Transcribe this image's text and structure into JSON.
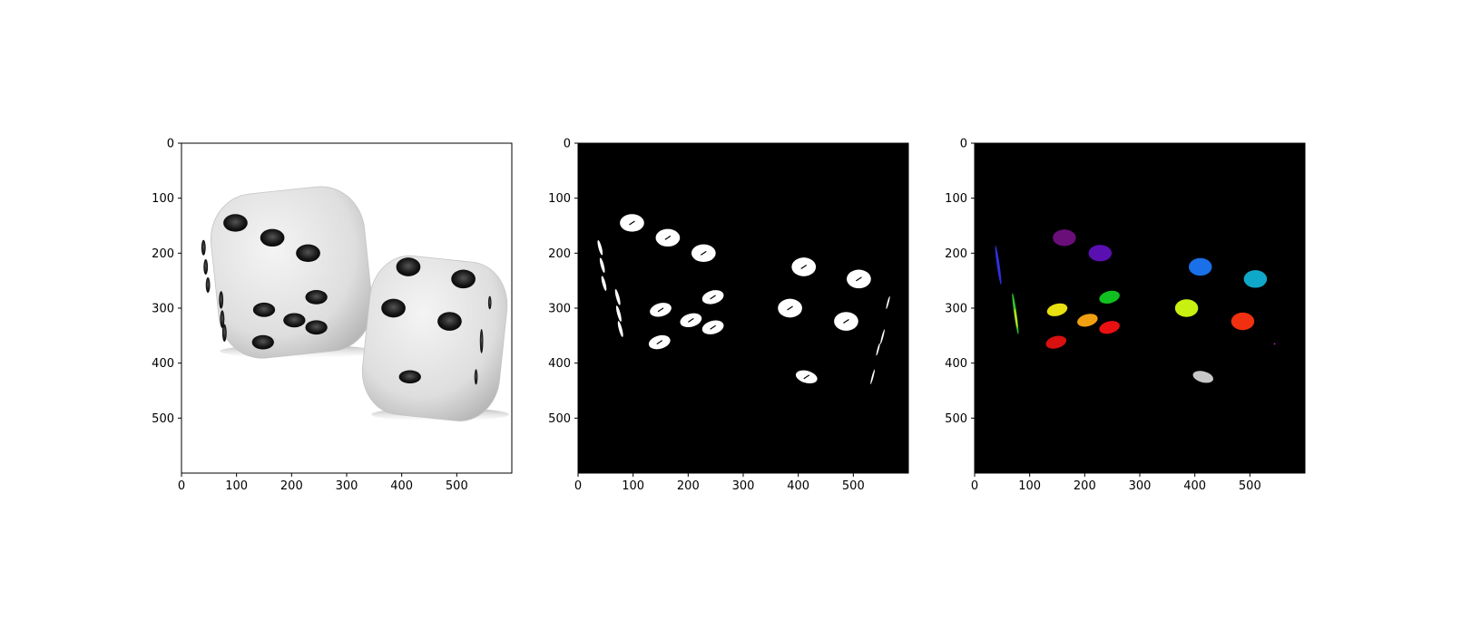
{
  "chart_data": [
    {
      "type": "image",
      "name": "grayscale dice photo",
      "background": "#ffffff",
      "xlim": [
        0,
        600
      ],
      "ylim": [
        600,
        0
      ],
      "xticks": [
        0,
        100,
        200,
        300,
        400,
        500
      ],
      "yticks": [
        0,
        100,
        200,
        300,
        400,
        500
      ],
      "dice": [
        {
          "cx": 200,
          "cy": 235,
          "w": 280,
          "h": 300,
          "rot": -6
        },
        {
          "cx": 460,
          "cy": 355,
          "w": 250,
          "h": 290,
          "rot": 6
        }
      ],
      "pips": [
        {
          "x": 98,
          "y": 145,
          "rx": 22,
          "ry": 16
        },
        {
          "x": 165,
          "y": 172,
          "rx": 22,
          "ry": 16
        },
        {
          "x": 230,
          "y": 200,
          "rx": 22,
          "ry": 16
        },
        {
          "x": 150,
          "y": 303,
          "rx": 20,
          "ry": 13
        },
        {
          "x": 205,
          "y": 322,
          "rx": 20,
          "ry": 13
        },
        {
          "x": 245,
          "y": 280,
          "rx": 20,
          "ry": 13
        },
        {
          "x": 245,
          "y": 335,
          "rx": 20,
          "ry": 13
        },
        {
          "x": 148,
          "y": 362,
          "rx": 20,
          "ry": 13
        },
        {
          "x": 412,
          "y": 225,
          "rx": 22,
          "ry": 17
        },
        {
          "x": 512,
          "y": 247,
          "rx": 22,
          "ry": 17
        },
        {
          "x": 385,
          "y": 300,
          "rx": 22,
          "ry": 17
        },
        {
          "x": 487,
          "y": 324,
          "rx": 22,
          "ry": 17
        },
        {
          "x": 415,
          "y": 425,
          "rx": 20,
          "ry": 12
        },
        {
          "x": 40,
          "y": 190,
          "rx": 4,
          "ry": 14
        },
        {
          "x": 44,
          "y": 225,
          "rx": 4,
          "ry": 14
        },
        {
          "x": 48,
          "y": 258,
          "rx": 4,
          "ry": 14
        },
        {
          "x": 72,
          "y": 285,
          "rx": 4,
          "ry": 16
        },
        {
          "x": 74,
          "y": 320,
          "rx": 4,
          "ry": 16
        },
        {
          "x": 78,
          "y": 345,
          "rx": 4,
          "ry": 16
        },
        {
          "x": 560,
          "y": 290,
          "rx": 3,
          "ry": 12
        },
        {
          "x": 545,
          "y": 360,
          "rx": 3,
          "ry": 22
        },
        {
          "x": 535,
          "y": 425,
          "rx": 3,
          "ry": 14
        }
      ]
    },
    {
      "type": "image",
      "name": "binary threshold mask",
      "background": "#000000",
      "xlim": [
        0,
        600
      ],
      "ylim": [
        600,
        0
      ],
      "xticks": [
        0,
        100,
        200,
        300,
        400,
        500
      ],
      "yticks": [
        0,
        100,
        200,
        300,
        400,
        500
      ],
      "blobs": [
        {
          "x": 98,
          "y": 145,
          "rx": 22,
          "ry": 16,
          "rot": 0
        },
        {
          "x": 163,
          "y": 172,
          "rx": 22,
          "ry": 16,
          "rot": 0
        },
        {
          "x": 228,
          "y": 200,
          "rx": 22,
          "ry": 16,
          "rot": 0
        },
        {
          "x": 150,
          "y": 303,
          "rx": 20,
          "ry": 12,
          "rot": -15
        },
        {
          "x": 205,
          "y": 322,
          "rx": 20,
          "ry": 12,
          "rot": -15
        },
        {
          "x": 245,
          "y": 280,
          "rx": 20,
          "ry": 12,
          "rot": -15
        },
        {
          "x": 245,
          "y": 335,
          "rx": 20,
          "ry": 12,
          "rot": -15
        },
        {
          "x": 148,
          "y": 362,
          "rx": 20,
          "ry": 12,
          "rot": -15
        },
        {
          "x": 410,
          "y": 225,
          "rx": 22,
          "ry": 17,
          "rot": 0
        },
        {
          "x": 510,
          "y": 247,
          "rx": 22,
          "ry": 17,
          "rot": 0
        },
        {
          "x": 385,
          "y": 300,
          "rx": 22,
          "ry": 17,
          "rot": 0
        },
        {
          "x": 487,
          "y": 324,
          "rx": 22,
          "ry": 17,
          "rot": 0
        },
        {
          "x": 415,
          "y": 425,
          "rx": 20,
          "ry": 11,
          "rot": 15
        },
        {
          "x": 40,
          "y": 190,
          "rx": 3,
          "ry": 14,
          "rot": -15
        },
        {
          "x": 44,
          "y": 222,
          "rx": 3,
          "ry": 14,
          "rot": -15
        },
        {
          "x": 47,
          "y": 255,
          "rx": 3,
          "ry": 14,
          "rot": -15
        },
        {
          "x": 72,
          "y": 280,
          "rx": 3,
          "ry": 15,
          "rot": -15
        },
        {
          "x": 74,
          "y": 310,
          "rx": 3,
          "ry": 15,
          "rot": -15
        },
        {
          "x": 77,
          "y": 338,
          "rx": 3,
          "ry": 15,
          "rot": -15
        },
        {
          "x": 563,
          "y": 290,
          "rx": 1.5,
          "ry": 12,
          "rot": 15
        },
        {
          "x": 553,
          "y": 352,
          "rx": 1.5,
          "ry": 14,
          "rot": 15
        },
        {
          "x": 545,
          "y": 375,
          "rx": 1.5,
          "ry": 12,
          "rot": 15
        },
        {
          "x": 535,
          "y": 425,
          "rx": 1.5,
          "ry": 14,
          "rot": 15
        }
      ]
    },
    {
      "type": "image",
      "name": "labeled connected components",
      "background": "#000000",
      "xlim": [
        0,
        600
      ],
      "ylim": [
        600,
        0
      ],
      "xticks": [
        0,
        100,
        200,
        300,
        400,
        500
      ],
      "yticks": [
        0,
        100,
        200,
        300,
        400,
        500
      ],
      "components": [
        {
          "x": 163,
          "y": 172,
          "rx": 21,
          "ry": 15,
          "rot": 0,
          "color": "#6a0f7a"
        },
        {
          "x": 228,
          "y": 200,
          "rx": 21,
          "ry": 15,
          "rot": 0,
          "color": "#5a0fb0"
        },
        {
          "x": 410,
          "y": 225,
          "rx": 21,
          "ry": 16,
          "rot": 0,
          "color": "#1a70e8"
        },
        {
          "x": 510,
          "y": 247,
          "rx": 21,
          "ry": 16,
          "rot": 0,
          "color": "#10a8c8"
        },
        {
          "x": 245,
          "y": 280,
          "rx": 19,
          "ry": 11,
          "rot": -15,
          "color": "#10c020"
        },
        {
          "x": 150,
          "y": 303,
          "rx": 19,
          "ry": 11,
          "rot": -15,
          "color": "#e8e010"
        },
        {
          "x": 385,
          "y": 300,
          "rx": 21,
          "ry": 16,
          "rot": 0,
          "color": "#c8f010"
        },
        {
          "x": 205,
          "y": 322,
          "rx": 19,
          "ry": 11,
          "rot": -15,
          "color": "#f0a010"
        },
        {
          "x": 245,
          "y": 335,
          "rx": 19,
          "ry": 11,
          "rot": -15,
          "color": "#e81010"
        },
        {
          "x": 487,
          "y": 324,
          "rx": 21,
          "ry": 16,
          "rot": 0,
          "color": "#f03010"
        },
        {
          "x": 148,
          "y": 362,
          "rx": 19,
          "ry": 11,
          "rot": -15,
          "color": "#d81010"
        },
        {
          "x": 415,
          "y": 425,
          "rx": 19,
          "ry": 10,
          "rot": 15,
          "color": "#c8c8c8"
        },
        {
          "x": 43,
          "y": 222,
          "rx": 2.5,
          "ry": 36,
          "rot": -8,
          "color": "#3030e0"
        },
        {
          "x": 74,
          "y": 310,
          "rx": 2.5,
          "ry": 38,
          "rot": -8,
          "color": "#30c030"
        },
        {
          "x": 75,
          "y": 318,
          "rx": 1.5,
          "ry": 18,
          "rot": -8,
          "color": "#e8e010"
        },
        {
          "x": 545,
          "y": 365,
          "rx": 1.5,
          "ry": 1.5,
          "rot": 0,
          "color": "#e010e0"
        }
      ]
    }
  ]
}
